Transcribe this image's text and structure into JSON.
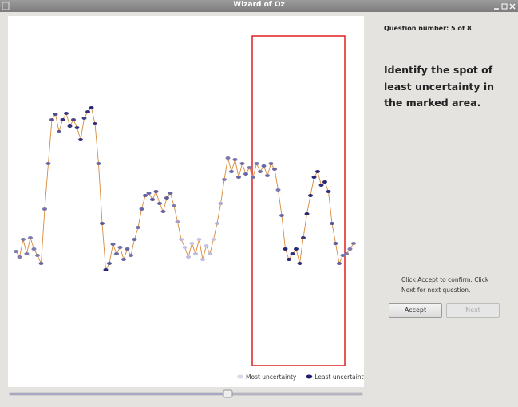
{
  "window": {
    "title": "Wizard of Oz"
  },
  "panel": {
    "question_number": "Question number: 5 of 8",
    "instruction": "Identify the spot of least uncertainty in the marked area.",
    "help": "Click Accept to confirm. Click Next for next question.",
    "buttons": [
      "Accept",
      "Next"
    ]
  },
  "plot": {
    "line_color": "#d98a3a",
    "marked_area_color": "#e02020",
    "legend": [
      {
        "name": "Most uncertainty",
        "color": "#dcd6ef"
      },
      {
        "name": "Least uncertainty",
        "color": "#1e1e6e"
      }
    ],
    "values": [
      155,
      148,
      170,
      152,
      172,
      158,
      150,
      140,
      208,
      265,
      320,
      327,
      305,
      320,
      328,
      312,
      320,
      310,
      295,
      322,
      330,
      335,
      315,
      265,
      190,
      132,
      140,
      164,
      152,
      160,
      145,
      158,
      150,
      170,
      185,
      208,
      225,
      228,
      220,
      230,
      215,
      205,
      222,
      228,
      212,
      192,
      170,
      160,
      148,
      165,
      152,
      170,
      145,
      162,
      152,
      170,
      190,
      215,
      245,
      272,
      255,
      270,
      248,
      265,
      252,
      260,
      248,
      265,
      255,
      262,
      250,
      265,
      258,
      232,
      200,
      158,
      145,
      152,
      158,
      140,
      172,
      202,
      225,
      248,
      255,
      238,
      242,
      230,
      190,
      165,
      140,
      150,
      152,
      158,
      165
    ],
    "uncertainty": [
      0.5,
      0.5,
      0.5,
      0.5,
      0.5,
      0.5,
      0.5,
      0.4,
      0.45,
      0.4,
      0.3,
      0.25,
      0.3,
      0.1,
      0.15,
      0.1,
      0.2,
      0.15,
      0.1,
      0.2,
      0.1,
      0.05,
      0.1,
      0.4,
      0.3,
      0.05,
      0.3,
      0.4,
      0.4,
      0.45,
      0.4,
      0.4,
      0.45,
      0.4,
      0.45,
      0.4,
      0.35,
      0.4,
      0.3,
      0.35,
      0.35,
      0.4,
      0.35,
      0.4,
      0.5,
      0.7,
      0.85,
      0.9,
      0.85,
      0.9,
      0.85,
      0.9,
      0.85,
      0.9,
      0.85,
      0.9,
      0.8,
      0.75,
      0.55,
      0.5,
      0.4,
      0.45,
      0.4,
      0.45,
      0.4,
      0.5,
      0.45,
      0.5,
      0.45,
      0.4,
      0.45,
      0.45,
      0.4,
      0.5,
      0.4,
      0.05,
      0.05,
      0.1,
      0.05,
      0.1,
      0.15,
      0.05,
      0.05,
      0.05,
      0.05,
      0.1,
      0.05,
      0.1,
      0.3,
      0.35,
      0.35,
      0.45,
      0.5,
      0.5,
      0.5
    ]
  }
}
